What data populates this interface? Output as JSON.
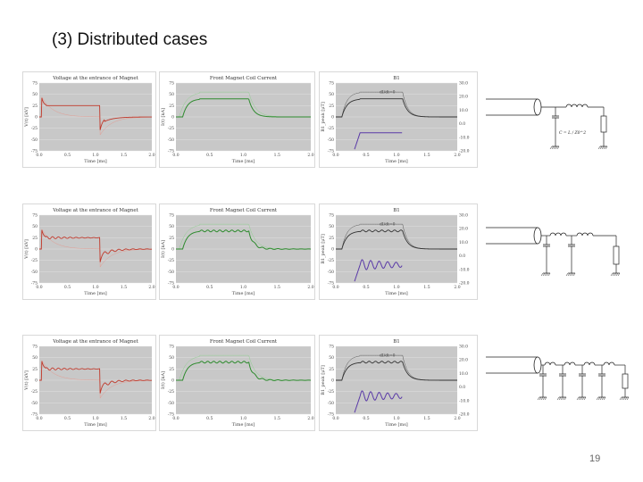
{
  "slide": {
    "title": "(3) Distributed cases",
    "page_number": "19"
  },
  "rows": [
    {
      "charts": [
        {
          "title": "Voltage at the entrance of Magnet",
          "ylabel": "V(t) [kV]",
          "xlabel": "Time [ms]",
          "kind": "voltage",
          "osc": false
        },
        {
          "title": "Front Magnet Coil Current",
          "ylabel": "I(t) [kA]",
          "xlabel": "Time [ms]",
          "kind": "current",
          "osc": false
        },
        {
          "title": "B1",
          "ylabel": "B1_peak [μT]",
          "xlabel": "Time [ms]",
          "kind": "field",
          "osc": false,
          "annotation": "dI/dt=0"
        }
      ],
      "circuit": {
        "type": "lumped",
        "label": "C = L / Z0^2"
      }
    },
    {
      "charts": [
        {
          "title": "Voltage at the entrance of Magnet",
          "ylabel": "V(t) [kV]",
          "xlabel": "Time [ms]",
          "kind": "voltage",
          "osc": true
        },
        {
          "title": "Front Magnet Coil Current",
          "ylabel": "I(t) [kA]",
          "xlabel": "Time [ms]",
          "kind": "current",
          "osc": true
        },
        {
          "title": "B1",
          "ylabel": "B1_peak [μT]",
          "xlabel": "Time [ms]",
          "kind": "field",
          "osc": true,
          "annotation": "dI/dt=0"
        }
      ],
      "circuit": {
        "type": "2-section"
      }
    },
    {
      "charts": [
        {
          "title": "Voltage at the entrance of Magnet",
          "ylabel": "V(t) [kV]",
          "xlabel": "Time [ms]",
          "kind": "voltage",
          "osc": true
        },
        {
          "title": "Front Magnet Coil Current",
          "ylabel": "I(t) [kA]",
          "xlabel": "Time [ms]",
          "kind": "current",
          "osc": true
        },
        {
          "title": "B1",
          "ylabel": "B1_peak [μT]",
          "xlabel": "Time [ms]",
          "kind": "field",
          "osc": true,
          "annotation": "dI/dt=0"
        }
      ],
      "circuit": {
        "type": "4-section"
      }
    }
  ],
  "axes": {
    "left_ticks": [
      "75",
      "50",
      "25",
      "0",
      "-25",
      "-50",
      "-75"
    ],
    "x_ticks": [
      "0.0",
      "0.5",
      "1.0",
      "1.5",
      "2.0"
    ],
    "right_ticks": [
      "30.0",
      "20.0",
      "10.0",
      "0.0",
      "-10.0",
      "-20.0"
    ]
  },
  "colors": {
    "plot_bg": "#c8c8c8",
    "voltage": "#c0392b",
    "current": "#2e8b2e",
    "field": "#333333",
    "field_secondary": "#5a3aa8"
  }
}
